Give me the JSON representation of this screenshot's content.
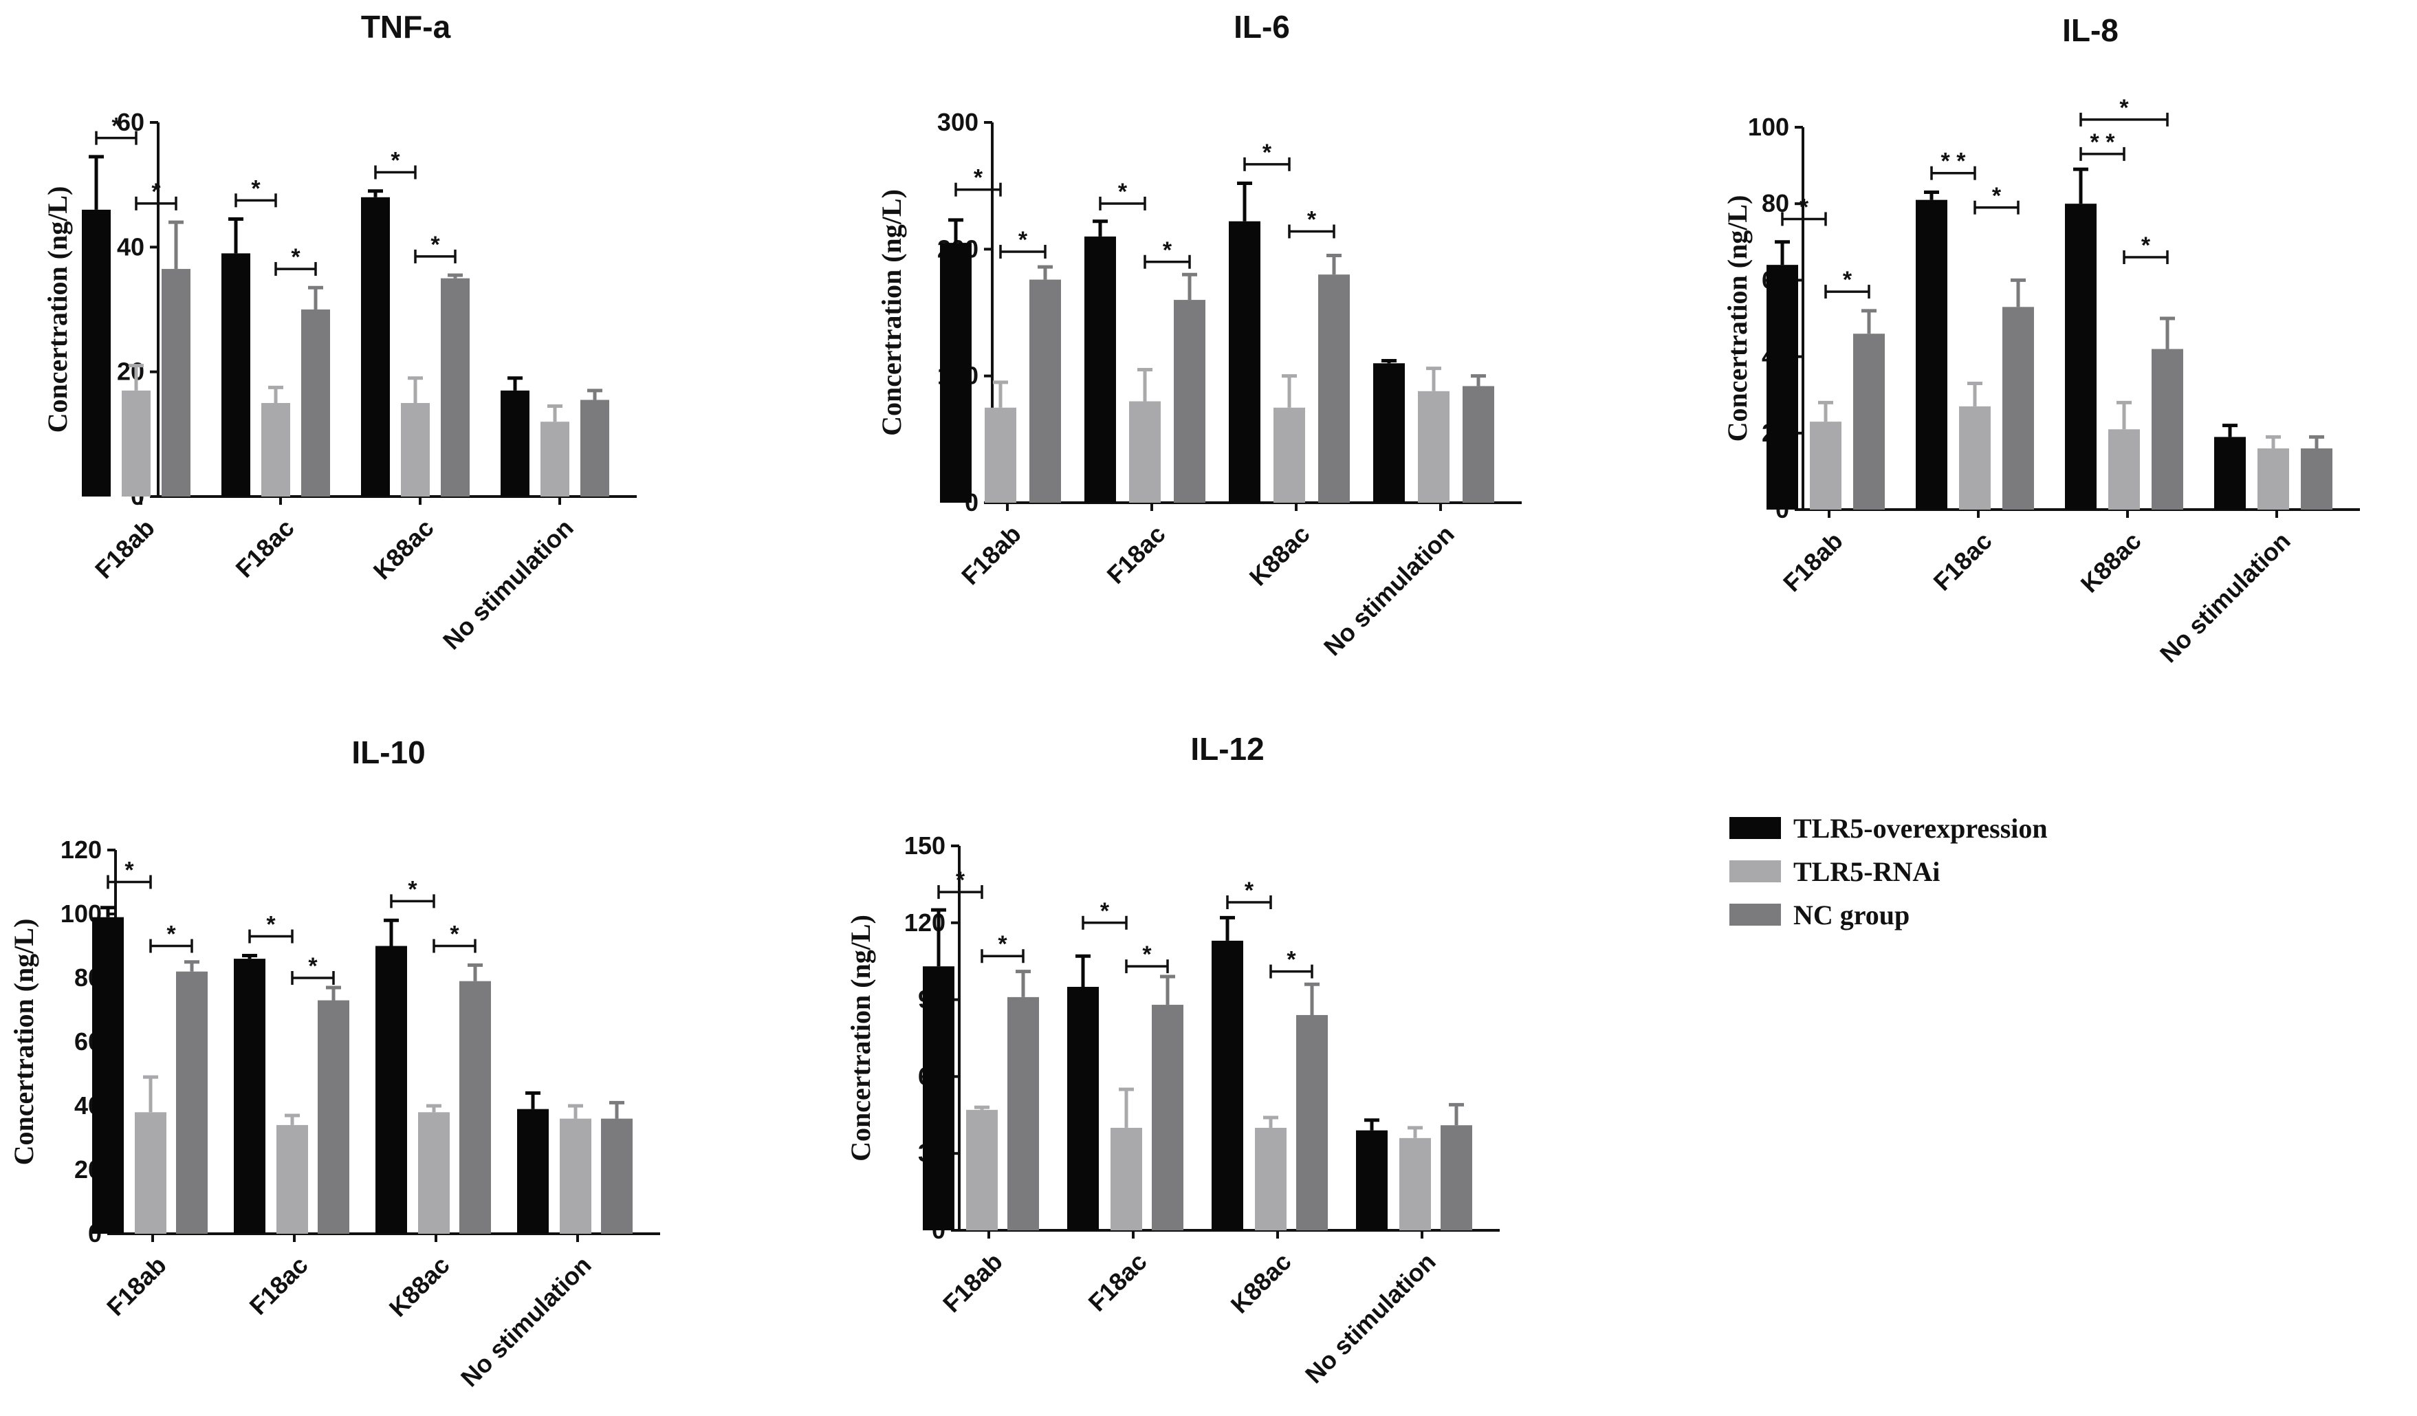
{
  "chart_data": [
    {
      "type": "bar",
      "title": "TNF-a",
      "ylabel": "Concertration (ng/L)",
      "xlabel": "",
      "ylim": [
        0,
        60
      ],
      "yticks": [
        0,
        20,
        40,
        60
      ],
      "categories": [
        "F18ab",
        "F18ac",
        "K88ac",
        "No stimulation"
      ],
      "series": [
        {
          "name": "TLR5-overexpression",
          "values": [
            46,
            39,
            48,
            17
          ],
          "errors": [
            8.5,
            5.5,
            1,
            2
          ]
        },
        {
          "name": "TLR5-RNAi",
          "values": [
            17,
            15,
            15,
            12
          ],
          "errors": [
            4,
            2.5,
            4,
            2.5
          ]
        },
        {
          "name": "NC group",
          "values": [
            36.5,
            30,
            35,
            15.5
          ],
          "errors": [
            7.5,
            3.5,
            0.5,
            1.5
          ]
        }
      ],
      "significance": [
        {
          "category": 0,
          "from": 0,
          "to": 1,
          "label": "*",
          "value": 57.5
        },
        {
          "category": 0,
          "from": 1,
          "to": 2,
          "label": "*",
          "value": 47
        },
        {
          "category": 1,
          "from": 0,
          "to": 1,
          "label": "*",
          "value": 47.5
        },
        {
          "category": 1,
          "from": 1,
          "to": 2,
          "label": "*",
          "value": 36.5
        },
        {
          "category": 2,
          "from": 0,
          "to": 1,
          "label": "*",
          "value": 52
        },
        {
          "category": 2,
          "from": 1,
          "to": 2,
          "label": "*",
          "value": 38.5
        }
      ]
    },
    {
      "type": "bar",
      "title": "IL-6",
      "ylabel": "Concertration (ng/L)",
      "xlabel": "",
      "ylim": [
        0,
        300
      ],
      "yticks": [
        0,
        100,
        200,
        300
      ],
      "categories": [
        "F18ab",
        "F18ac",
        "K88ac",
        "No stimulation"
      ],
      "series": [
        {
          "name": "TLR5-overexpression",
          "values": [
            205,
            210,
            222,
            110
          ],
          "errors": [
            18,
            12,
            30,
            2
          ]
        },
        {
          "name": "TLR5-RNAi",
          "values": [
            75,
            80,
            75,
            88
          ],
          "errors": [
            20,
            25,
            25,
            18
          ]
        },
        {
          "name": "NC group",
          "values": [
            176,
            160,
            180,
            92
          ],
          "errors": [
            10,
            20,
            15,
            8
          ]
        }
      ],
      "significance": [
        {
          "category": 0,
          "from": 0,
          "to": 1,
          "label": "*",
          "value": 247
        },
        {
          "category": 0,
          "from": 1,
          "to": 2,
          "label": "*",
          "value": 198
        },
        {
          "category": 1,
          "from": 0,
          "to": 1,
          "label": "*",
          "value": 236
        },
        {
          "category": 1,
          "from": 1,
          "to": 2,
          "label": "*",
          "value": 190
        },
        {
          "category": 2,
          "from": 0,
          "to": 1,
          "label": "*",
          "value": 267
        },
        {
          "category": 2,
          "from": 1,
          "to": 2,
          "label": "*",
          "value": 214
        }
      ]
    },
    {
      "type": "bar",
      "title": "IL-8",
      "ylabel": "Concertration (ng/L)",
      "xlabel": "",
      "ylim": [
        0,
        100
      ],
      "yticks": [
        0,
        20,
        40,
        60,
        80,
        100
      ],
      "categories": [
        "F18ab",
        "F18ac",
        "K88ac",
        "No stimulation"
      ],
      "series": [
        {
          "name": "TLR5-overexpression",
          "values": [
            64,
            81,
            80,
            19
          ],
          "errors": [
            6,
            2,
            9,
            3
          ]
        },
        {
          "name": "TLR5-RNAi",
          "values": [
            23,
            27,
            21,
            16
          ],
          "errors": [
            5,
            6,
            7,
            3
          ]
        },
        {
          "name": "NC group",
          "values": [
            46,
            53,
            42,
            16
          ],
          "errors": [
            6,
            7,
            8,
            3
          ]
        }
      ],
      "significance": [
        {
          "category": 0,
          "from": 0,
          "to": 1,
          "label": "*",
          "value": 76
        },
        {
          "category": 0,
          "from": 1,
          "to": 2,
          "label": "*",
          "value": 57
        },
        {
          "category": 1,
          "from": 0,
          "to": 1,
          "label": "* *",
          "value": 88
        },
        {
          "category": 1,
          "from": 1,
          "to": 2,
          "label": "*",
          "value": 79
        },
        {
          "category": 2,
          "from": 0,
          "to": 1,
          "label": "* *",
          "value": 93
        },
        {
          "category": 2,
          "from": 1,
          "to": 2,
          "label": "*",
          "value": 66
        },
        {
          "category": 2,
          "from": 0,
          "to": 2,
          "label": "*",
          "value": 102
        }
      ]
    },
    {
      "type": "bar",
      "title": "IL-10",
      "ylabel": "Concertration (ng/L)",
      "xlabel": "",
      "ylim": [
        0,
        120
      ],
      "yticks": [
        0,
        20,
        40,
        60,
        80,
        100,
        120
      ],
      "categories": [
        "F18ab",
        "F18ac",
        "K88ac",
        "No stimulation"
      ],
      "series": [
        {
          "name": "TLR5-overexpression",
          "values": [
            99,
            86,
            90,
            39
          ],
          "errors": [
            3,
            1,
            8,
            5
          ]
        },
        {
          "name": "TLR5-RNAi",
          "values": [
            38,
            34,
            38,
            36
          ],
          "errors": [
            11,
            3,
            2,
            4
          ]
        },
        {
          "name": "NC group",
          "values": [
            82,
            73,
            79,
            36
          ],
          "errors": [
            3,
            4,
            5,
            5
          ]
        }
      ],
      "significance": [
        {
          "category": 0,
          "from": 0,
          "to": 1,
          "label": "*",
          "value": 110
        },
        {
          "category": 0,
          "from": 1,
          "to": 2,
          "label": "*",
          "value": 90
        },
        {
          "category": 1,
          "from": 0,
          "to": 1,
          "label": "*",
          "value": 93
        },
        {
          "category": 1,
          "from": 1,
          "to": 2,
          "label": "*",
          "value": 80
        },
        {
          "category": 2,
          "from": 0,
          "to": 1,
          "label": "*",
          "value": 104
        },
        {
          "category": 2,
          "from": 1,
          "to": 2,
          "label": "*",
          "value": 90
        }
      ]
    },
    {
      "type": "bar",
      "title": "IL-12",
      "ylabel": "Concertration (ng/L)",
      "xlabel": "",
      "ylim": [
        0,
        150
      ],
      "yticks": [
        0,
        30,
        60,
        90,
        120,
        150
      ],
      "categories": [
        "F18ab",
        "F18ac",
        "K88ac",
        "No stimulation"
      ],
      "series": [
        {
          "name": "TLR5-overexpression",
          "values": [
            103,
            95,
            113,
            39
          ],
          "errors": [
            22,
            12,
            9,
            4
          ]
        },
        {
          "name": "TLR5-RNAi",
          "values": [
            47,
            40,
            40,
            36
          ],
          "errors": [
            1,
            15,
            4,
            4
          ]
        },
        {
          "name": "NC group",
          "values": [
            91,
            88,
            84,
            41
          ],
          "errors": [
            10,
            11,
            12,
            8
          ]
        }
      ],
      "significance": [
        {
          "category": 0,
          "from": 0,
          "to": 1,
          "label": "*",
          "value": 132
        },
        {
          "category": 0,
          "from": 1,
          "to": 2,
          "label": "*",
          "value": 107
        },
        {
          "category": 1,
          "from": 0,
          "to": 1,
          "label": "*",
          "value": 120
        },
        {
          "category": 1,
          "from": 1,
          "to": 2,
          "label": "*",
          "value": 103
        },
        {
          "category": 2,
          "from": 0,
          "to": 1,
          "label": "*",
          "value": 128
        },
        {
          "category": 2,
          "from": 1,
          "to": 2,
          "label": "*",
          "value": 101
        }
      ]
    }
  ],
  "legend": [
    {
      "name": "TLR5-overexpression",
      "color": "#080808"
    },
    {
      "name": "TLR5-RNAi",
      "color": "#a9a9ab"
    },
    {
      "name": "NC group",
      "color": "#7b7b7d"
    }
  ],
  "colors": [
    "#080808",
    "#a9a9ab",
    "#7b7b7d"
  ]
}
